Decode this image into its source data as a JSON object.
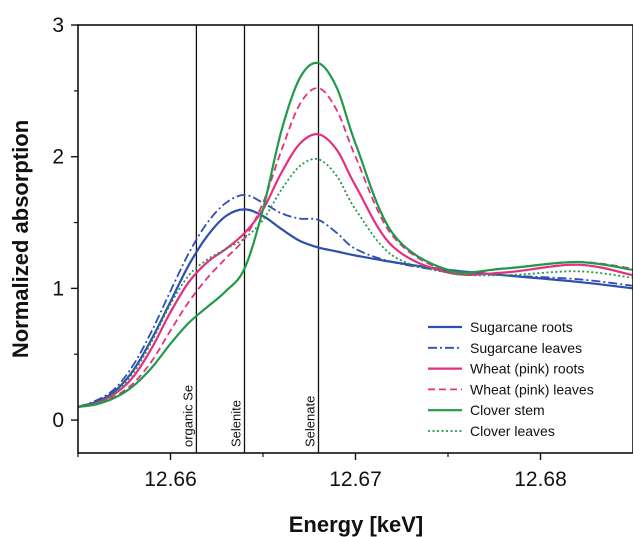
{
  "chart_data": {
    "type": "line",
    "xlabel": "Energy [keV]",
    "ylabel": "Normalized absorption",
    "xlim": [
      12.655,
      12.685
    ],
    "ylim": [
      -0.25,
      3.0
    ],
    "x_ticks": [
      12.66,
      12.67,
      12.68
    ],
    "x_tick_labels": [
      "12.66",
      "12.67",
      "12.68"
    ],
    "y_ticks": [
      0,
      1,
      2,
      3
    ],
    "y_tick_labels": [
      "0",
      "1",
      "2",
      "3"
    ],
    "legend_position": "bottom-right",
    "reference_lines": [
      {
        "label": "organic Se",
        "x": 12.6614
      },
      {
        "label": "Selenite",
        "x": 12.664
      },
      {
        "label": "Selenate",
        "x": 12.668
      }
    ],
    "x": [
      12.655,
      12.656,
      12.657,
      12.658,
      12.659,
      12.66,
      12.661,
      12.662,
      12.663,
      12.664,
      12.665,
      12.666,
      12.667,
      12.668,
      12.669,
      12.67,
      12.672,
      12.675,
      12.678,
      12.682,
      12.685
    ],
    "series": [
      {
        "name": "Sugarcane roots",
        "color": "#2e4fb0",
        "dash": "solid",
        "width": 2.2,
        "values": [
          0.1,
          0.14,
          0.22,
          0.38,
          0.62,
          0.9,
          1.18,
          1.4,
          1.55,
          1.6,
          1.55,
          1.45,
          1.36,
          1.31,
          1.28,
          1.25,
          1.2,
          1.14,
          1.1,
          1.05,
          1.0
        ]
      },
      {
        "name": "Sugarcane leaves",
        "color": "#2e4fb0",
        "dash": "dashdot",
        "width": 1.8,
        "values": [
          0.1,
          0.15,
          0.24,
          0.42,
          0.68,
          0.98,
          1.27,
          1.5,
          1.65,
          1.71,
          1.65,
          1.57,
          1.53,
          1.52,
          1.42,
          1.3,
          1.2,
          1.13,
          1.1,
          1.07,
          1.02
        ]
      },
      {
        "name": "Wheat (pink) roots",
        "color": "#e5307f",
        "dash": "solid",
        "width": 2.2,
        "values": [
          0.1,
          0.13,
          0.2,
          0.33,
          0.55,
          0.82,
          1.05,
          1.2,
          1.3,
          1.42,
          1.6,
          1.88,
          2.1,
          2.17,
          2.05,
          1.78,
          1.32,
          1.12,
          1.12,
          1.18,
          1.1
        ]
      },
      {
        "name": "Wheat (pink) leaves",
        "color": "#e5307f",
        "dash": "dash",
        "width": 1.8,
        "values": [
          0.1,
          0.12,
          0.18,
          0.28,
          0.45,
          0.68,
          0.9,
          1.08,
          1.23,
          1.38,
          1.65,
          2.05,
          2.4,
          2.52,
          2.35,
          2.0,
          1.4,
          1.13,
          1.15,
          1.2,
          1.15
        ]
      },
      {
        "name": "Clover stem",
        "color": "#1e9a48",
        "dash": "solid",
        "width": 2.2,
        "values": [
          0.1,
          0.12,
          0.17,
          0.26,
          0.4,
          0.58,
          0.74,
          0.86,
          0.98,
          1.15,
          1.6,
          2.2,
          2.6,
          2.71,
          2.52,
          2.1,
          1.42,
          1.14,
          1.15,
          1.2,
          1.14
        ]
      },
      {
        "name": "Clover leaves",
        "color": "#1e9a48",
        "dash": "dot",
        "width": 1.8,
        "values": [
          0.1,
          0.13,
          0.21,
          0.36,
          0.6,
          0.88,
          1.1,
          1.22,
          1.3,
          1.38,
          1.52,
          1.75,
          1.93,
          1.98,
          1.85,
          1.6,
          1.25,
          1.12,
          1.1,
          1.13,
          1.08
        ]
      }
    ]
  }
}
